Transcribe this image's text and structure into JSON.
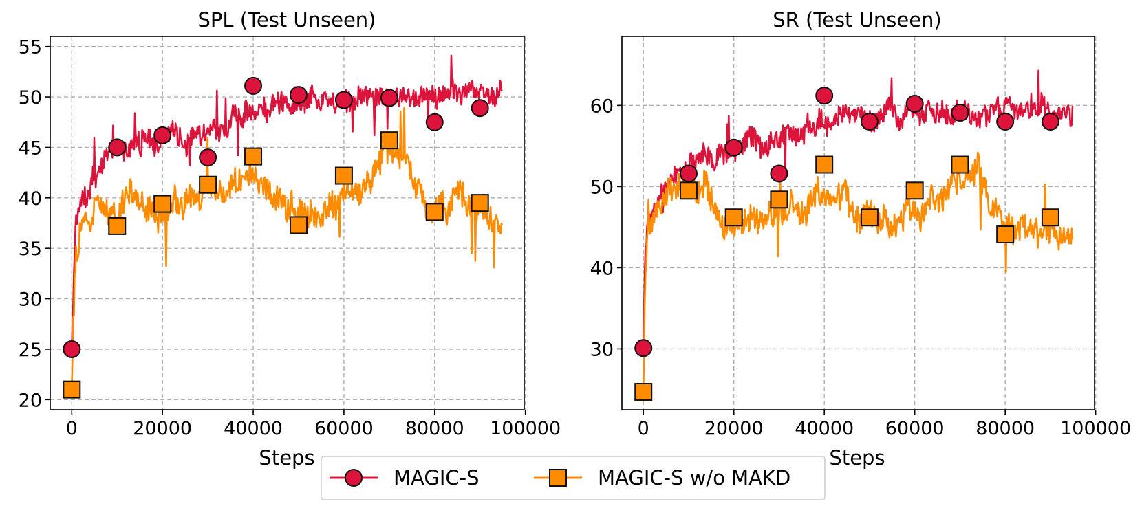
{
  "legend": {
    "entries": [
      {
        "label": "MAGIC-S",
        "color": "#dc143c",
        "marker": "circle"
      },
      {
        "label": "MAGIC-S w/o MAKD",
        "color": "#ff8c00",
        "marker": "square"
      }
    ],
    "placement": "bottom-center"
  },
  "chart_data": [
    {
      "type": "line",
      "title": "SPL (Test Unseen)",
      "xlabel": "Steps",
      "ylabel": "",
      "xlim": [
        -4750,
        99750
      ],
      "ylim": [
        19,
        56
      ],
      "xticks": [
        0,
        20000,
        40000,
        60000,
        80000,
        100000
      ],
      "yticks": [
        20,
        25,
        30,
        35,
        40,
        45,
        50,
        55
      ],
      "grid": true,
      "series": [
        {
          "name": "MAGIC-S",
          "color": "#dc143c",
          "marker": "circle",
          "trend": [
            [
              0,
              25
            ],
            [
              300,
              30
            ],
            [
              800,
              37
            ],
            [
              2000,
              40
            ],
            [
              5000,
              42.5
            ],
            [
              10000,
              44.5
            ],
            [
              15000,
              45.5
            ],
            [
              20000,
              46
            ],
            [
              25000,
              46
            ],
            [
              30000,
              46
            ],
            [
              35000,
              47.5
            ],
            [
              40000,
              49
            ],
            [
              45000,
              49.5
            ],
            [
              50000,
              50
            ],
            [
              55000,
              50
            ],
            [
              60000,
              50
            ],
            [
              65000,
              50
            ],
            [
              70000,
              50.2
            ],
            [
              75000,
              50
            ],
            [
              80000,
              50
            ],
            [
              85000,
              50.2
            ],
            [
              90000,
              50.2
            ],
            [
              95000,
              50.5
            ]
          ],
          "markers": [
            [
              0,
              25
            ],
            [
              10000,
              45
            ],
            [
              20000,
              46.2
            ],
            [
              30000,
              44
            ],
            [
              40000,
              51.1
            ],
            [
              50000,
              50.2
            ],
            [
              60000,
              49.7
            ],
            [
              70000,
              49.9
            ],
            [
              80000,
              47.5
            ],
            [
              90000,
              48.9
            ]
          ]
        },
        {
          "name": "MAGIC-S w/o MAKD",
          "color": "#ff8c00",
          "marker": "square",
          "trend": [
            [
              0,
              21
            ],
            [
              300,
              27
            ],
            [
              800,
              33
            ],
            [
              2000,
              36
            ],
            [
              5000,
              38
            ],
            [
              10000,
              39
            ],
            [
              13000,
              41
            ],
            [
              16000,
              38.5
            ],
            [
              20000,
              38.5
            ],
            [
              25000,
              38.5
            ],
            [
              30000,
              41.5
            ],
            [
              35000,
              40.5
            ],
            [
              40000,
              42.5
            ],
            [
              45000,
              40
            ],
            [
              50000,
              38
            ],
            [
              55000,
              38.5
            ],
            [
              60000,
              41.5
            ],
            [
              65000,
              41
            ],
            [
              70000,
              45
            ],
            [
              75000,
              42.5
            ],
            [
              78000,
              39
            ],
            [
              80000,
              38.5
            ],
            [
              85000,
              39.5
            ],
            [
              90000,
              38.5
            ],
            [
              95000,
              37
            ]
          ],
          "markers": [
            [
              0,
              21
            ],
            [
              10000,
              37.2
            ],
            [
              20000,
              39.4
            ],
            [
              30000,
              41.3
            ],
            [
              40000,
              44.1
            ],
            [
              50000,
              37.3
            ],
            [
              60000,
              42.2
            ],
            [
              70000,
              45.7
            ],
            [
              80000,
              38.6
            ],
            [
              90000,
              39.5
            ]
          ]
        }
      ]
    },
    {
      "type": "line",
      "title": "SR (Test Unseen)",
      "xlabel": "Steps",
      "ylabel": "",
      "xlim": [
        -4750,
        99750
      ],
      "ylim": [
        22.5,
        68.5
      ],
      "xticks": [
        0,
        20000,
        40000,
        60000,
        80000,
        100000
      ],
      "yticks": [
        30,
        40,
        50,
        60
      ],
      "grid": true,
      "series": [
        {
          "name": "MAGIC-S",
          "color": "#dc143c",
          "marker": "circle",
          "trend": [
            [
              0,
              30
            ],
            [
              300,
              40
            ],
            [
              800,
              46
            ],
            [
              2000,
              48.5
            ],
            [
              5000,
              50
            ],
            [
              10000,
              52
            ],
            [
              15000,
              53.5
            ],
            [
              20000,
              54.5
            ],
            [
              25000,
              55.5
            ],
            [
              30000,
              56
            ],
            [
              35000,
              57
            ],
            [
              40000,
              58
            ],
            [
              45000,
              58.5
            ],
            [
              50000,
              58.5
            ],
            [
              55000,
              59
            ],
            [
              60000,
              59
            ],
            [
              65000,
              59
            ],
            [
              70000,
              59
            ],
            [
              75000,
              59.2
            ],
            [
              80000,
              59
            ],
            [
              85000,
              59.5
            ],
            [
              90000,
              59.5
            ],
            [
              95000,
              59.5
            ]
          ],
          "markers": [
            [
              0,
              30.1
            ],
            [
              10000,
              51.6
            ],
            [
              20000,
              54.8
            ],
            [
              30000,
              51.6
            ],
            [
              40000,
              61.2
            ],
            [
              50000,
              58
            ],
            [
              60000,
              60.2
            ],
            [
              70000,
              59.1
            ],
            [
              80000,
              58
            ],
            [
              90000,
              58
            ]
          ]
        },
        {
          "name": "MAGIC-S w/o MAKD",
          "color": "#ff8c00",
          "marker": "square",
          "trend": [
            [
              0,
              24.7
            ],
            [
              300,
              35
            ],
            [
              800,
              42
            ],
            [
              2000,
              46.5
            ],
            [
              5000,
              49.5
            ],
            [
              10000,
              50
            ],
            [
              14000,
              50
            ],
            [
              17000,
              46.5
            ],
            [
              20000,
              46
            ],
            [
              25000,
              45
            ],
            [
              30000,
              47
            ],
            [
              35000,
              47
            ],
            [
              40000,
              50
            ],
            [
              45000,
              48.5
            ],
            [
              50000,
              46
            ],
            [
              55000,
              45
            ],
            [
              60000,
              48
            ],
            [
              65000,
              47
            ],
            [
              70000,
              51
            ],
            [
              74000,
              53
            ],
            [
              78000,
              47
            ],
            [
              80000,
              45
            ],
            [
              85000,
              45
            ],
            [
              90000,
              45
            ],
            [
              95000,
              43.5
            ]
          ],
          "markers": [
            [
              0,
              24.7
            ],
            [
              10000,
              49.5
            ],
            [
              20000,
              46.2
            ],
            [
              30000,
              48.4
            ],
            [
              40000,
              52.7
            ],
            [
              50000,
              46.2
            ],
            [
              60000,
              49.5
            ],
            [
              70000,
              52.7
            ],
            [
              80000,
              44.1
            ],
            [
              90000,
              46.2
            ]
          ]
        }
      ]
    }
  ]
}
